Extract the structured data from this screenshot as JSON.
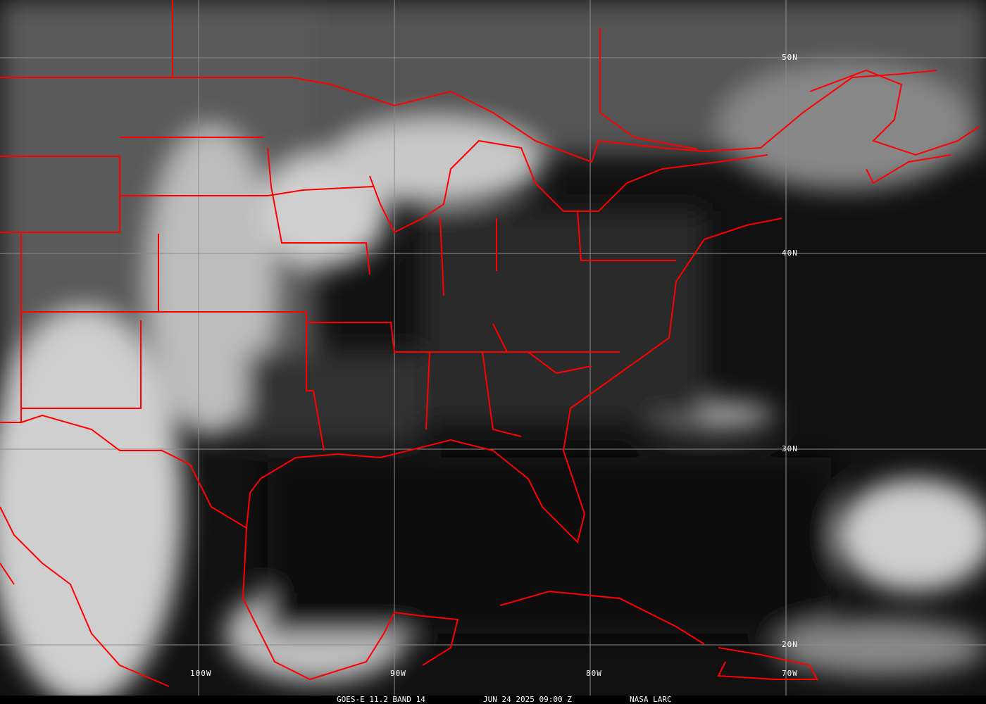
{
  "caption": {
    "product": "GOES-E 11.2 BAND 14",
    "datetime": "JUN 24 2025 09:00 Z",
    "credit": "NASA LARC"
  },
  "grid": {
    "latitudes": [
      "50N",
      "40N",
      "30N",
      "20N"
    ],
    "longitudes": [
      "100W",
      "90W",
      "80W",
      "70W"
    ],
    "line_color": "#8c8c8c"
  },
  "colors": {
    "boundaries": "#ff0000",
    "background": "#000000"
  }
}
